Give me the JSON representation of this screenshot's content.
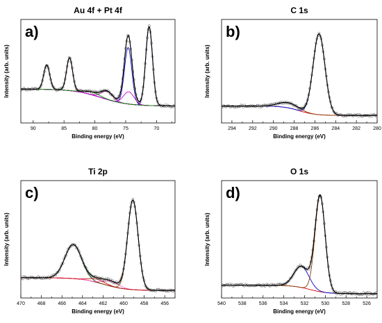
{
  "panels": [
    {
      "letter": "a)",
      "title": "Au 4f + Pt 4f",
      "xlabel": "Binding energy (eV)",
      "ylabel": "Intensity (arb. units)",
      "chart_data": {
        "type": "line",
        "title": "Au 4f + Pt 4f",
        "xlabel": "Binding energy (eV)",
        "ylabel": "Intensity (arb. units)",
        "xlim": [
          92,
          67
        ],
        "ylim": [
          0,
          1.1
        ],
        "xticks": [
          90,
          85,
          80,
          75,
          70
        ],
        "reversed_x": true,
        "y_ticks_shown": false,
        "background": {
          "left": 0.36,
          "right": 0.18,
          "center": 79.0,
          "steepness": 0.45
        },
        "series": [
          {
            "color": "#cc0000",
            "peaks": []
          },
          {
            "color": "#c00000",
            "peaks": [
              {
                "center": 87.8,
                "height": 0.26,
                "fwhm": 1.15
              }
            ]
          },
          {
            "color": "#c00000",
            "peaks": [
              {
                "center": 84.1,
                "height": 0.35,
                "fwhm": 1.15
              }
            ]
          },
          {
            "color": "#0000cc",
            "peaks": [
              {
                "center": 74.6,
                "height": 0.6,
                "fwhm": 1.4
              }
            ]
          },
          {
            "color": "#0000cc",
            "peaks": [
              {
                "center": 71.2,
                "height": 0.84,
                "fwhm": 1.3
              }
            ]
          },
          {
            "color": "#cc00cc",
            "peaks": [
              {
                "center": 78.0,
                "height": 0.085,
                "fwhm": 2.2
              }
            ]
          },
          {
            "color": "#cc00cc",
            "peaks": [
              {
                "center": 74.5,
                "height": 0.13,
                "fwhm": 2.0
              }
            ]
          },
          {
            "color": "#008800",
            "peaks": [
              {
                "center": 80.5,
                "height": 0.03,
                "fwhm": 3.0
              }
            ]
          }
        ],
        "envelope_color": "#000000",
        "data_marker": "open-circle"
      }
    },
    {
      "letter": "b)",
      "title": "C 1s",
      "xlabel": "Binding energy (eV)",
      "ylabel": "Intensity (arb. units)",
      "chart_data": {
        "type": "line",
        "title": "C 1s",
        "xlabel": "Binding energy (eV)",
        "ylabel": "Intensity (arb. units)",
        "xlim": [
          295,
          280
        ],
        "ylim": [
          0,
          1.1
        ],
        "xticks": [
          294,
          292,
          290,
          288,
          286,
          284,
          282,
          280
        ],
        "reversed_x": true,
        "y_ticks_shown": false,
        "background": {
          "left": 0.18,
          "right": 0.08,
          "center": 287.5,
          "steepness": 1.3
        },
        "series": [
          {
            "color": "#cc0000",
            "peaks": []
          },
          {
            "color": "#8b3a00",
            "peaks": [
              {
                "center": 288.6,
                "height": 0.055,
                "fwhm": 2.2
              }
            ]
          },
          {
            "color": "#0000cc",
            "peaks": [
              {
                "center": 285.6,
                "height": 0.86,
                "fwhm": 1.35
              }
            ]
          }
        ],
        "envelope_color": "#000000",
        "data_marker": "open-circle"
      }
    },
    {
      "letter": "c)",
      "title": "Ti 2p",
      "xlabel": "Binding energy (eV)",
      "ylabel": "Intensity (arb. units)",
      "chart_data": {
        "type": "line",
        "title": "Ti 2p",
        "xlabel": "Binding energy (eV)",
        "ylabel": "Intensity (arb. units)",
        "xlim": [
          470,
          455
        ],
        "ylim": [
          0,
          1.1
        ],
        "xticks": [
          470,
          468,
          466,
          464,
          462,
          460,
          458,
          456
        ],
        "reversed_x": true,
        "y_ticks_shown": false,
        "background": {
          "left": 0.19,
          "right": 0.07,
          "center": 462.0,
          "steepness": 0.9
        },
        "series": [
          {
            "color": "#cc00cc",
            "peaks": []
          },
          {
            "color": "#006600",
            "peaks": [
              {
                "center": 464.9,
                "height": 0.32,
                "fwhm": 1.9
              }
            ]
          },
          {
            "color": "#8b3a00",
            "peaks": [
              {
                "center": 459.1,
                "height": 0.84,
                "fwhm": 1.2
              }
            ]
          },
          {
            "color": "#ff66cc",
            "peaks": [
              {
                "center": 461.2,
                "height": 0.045,
                "fwhm": 1.8
              }
            ]
          },
          {
            "color": "#cc0000",
            "peaks": [
              {
                "center": 462.6,
                "height": 0.03,
                "fwhm": 1.8
              }
            ]
          }
        ],
        "envelope_color": "#000000",
        "data_marker": "open-circle"
      }
    },
    {
      "letter": "d)",
      "title": "O 1s",
      "xlabel": "Binding energy (eV)",
      "ylabel": "Intensity (arb. units)",
      "chart_data": {
        "type": "line",
        "title": "O 1s",
        "xlabel": "Binding energy (eV)",
        "ylabel": "Intensity (arb. units)",
        "xlim": [
          540,
          525
        ],
        "ylim": [
          0,
          1.1
        ],
        "xticks": [
          540,
          538,
          536,
          534,
          532,
          530,
          528,
          526
        ],
        "reversed_x": true,
        "y_ticks_shown": false,
        "background": {
          "left": 0.12,
          "right": 0.04,
          "center": 531.5,
          "steepness": 1.2
        },
        "series": [
          {
            "color": "#cc0000",
            "peaks": []
          },
          {
            "color": "#0000cc",
            "peaks": [
              {
                "center": 532.3,
                "height": 0.2,
                "fwhm": 1.7
              }
            ]
          },
          {
            "color": "#8b3a00",
            "peaks": [
              {
                "center": 530.5,
                "height": 0.9,
                "fwhm": 1.15
              }
            ]
          }
        ],
        "envelope_color": "#000000",
        "data_marker": "open-circle"
      }
    }
  ]
}
